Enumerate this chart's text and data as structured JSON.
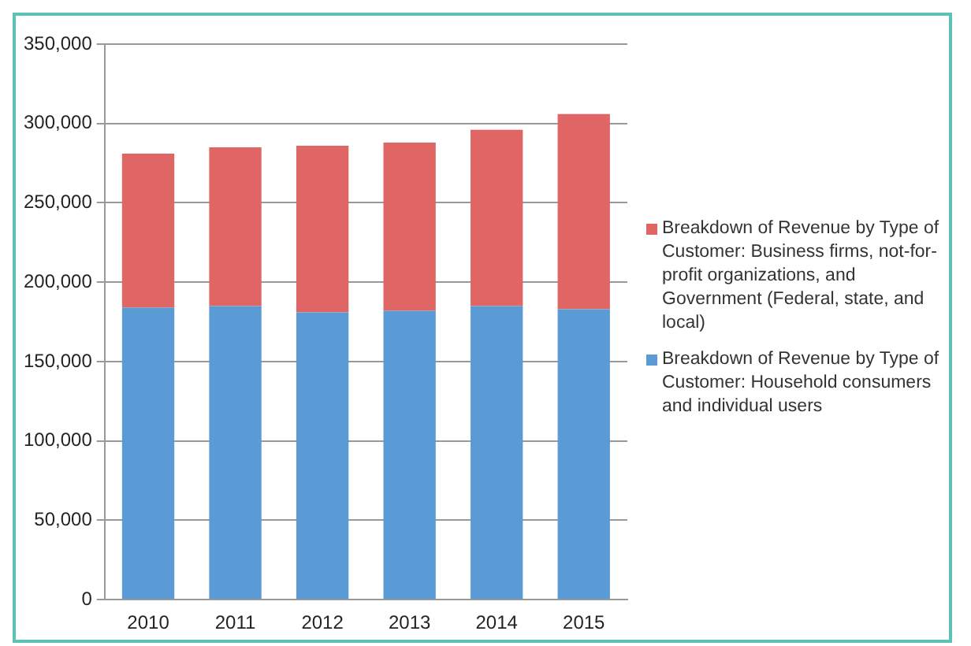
{
  "chart_data": {
    "type": "bar",
    "stacked": true,
    "categories": [
      "2010",
      "2011",
      "2012",
      "2013",
      "2014",
      "2015"
    ],
    "series": [
      {
        "name": "Breakdown of Revenue by Type of Customer: Household consumers and individual users",
        "color": "#5b9bd5",
        "values": [
          184000,
          185000,
          181000,
          182000,
          185000,
          183000
        ]
      },
      {
        "name": "Breakdown of Revenue by Type of Customer: Business firms, not-for-profit organizations, and Government (Federal, state, and local)",
        "color": "#e06666",
        "values": [
          97000,
          100000,
          105000,
          106000,
          111000,
          123000
        ]
      }
    ],
    "ylim": [
      0,
      350000
    ],
    "yticks": [
      0,
      {
        "value": 50000,
        "label": "50,000"
      },
      {
        "value": 100000,
        "label": "100,000"
      },
      {
        "value": 150000,
        "label": "150,000"
      },
      {
        "value": 200000,
        "label": "200,000"
      },
      {
        "value": 250000,
        "label": "250,000"
      },
      {
        "value": 300000,
        "label": "300,000"
      },
      {
        "value": 350000,
        "label": "350,000"
      }
    ],
    "grid": "y",
    "legend": "right"
  }
}
